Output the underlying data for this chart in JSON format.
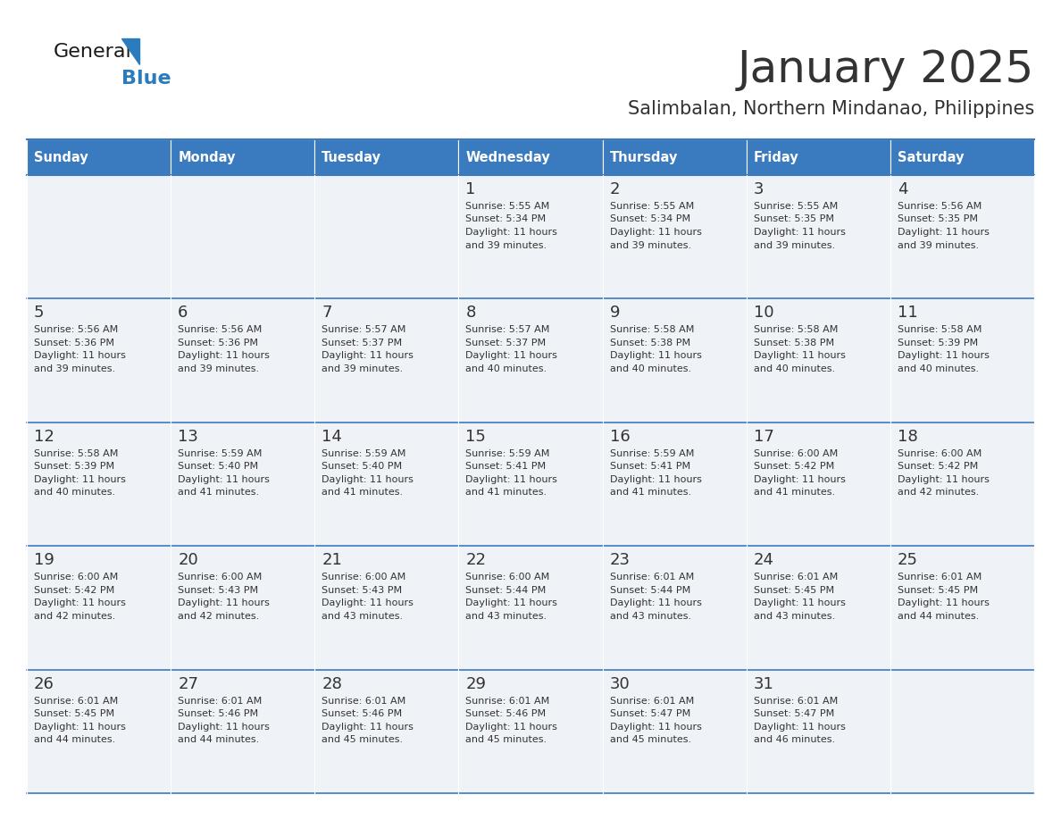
{
  "title": "January 2025",
  "subtitle": "Salimbalan, Northern Mindanao, Philippines",
  "header_bg": "#3a7abf",
  "header_text_color": "#ffffff",
  "cell_bg": "#eff3f7",
  "text_color": "#333333",
  "border_color": "#3a7abf",
  "days_of_week": [
    "Sunday",
    "Monday",
    "Tuesday",
    "Wednesday",
    "Thursday",
    "Friday",
    "Saturday"
  ],
  "weeks": [
    [
      {
        "day": "",
        "sunrise": "",
        "sunset": "",
        "daylight": ""
      },
      {
        "day": "",
        "sunrise": "",
        "sunset": "",
        "daylight": ""
      },
      {
        "day": "",
        "sunrise": "",
        "sunset": "",
        "daylight": ""
      },
      {
        "day": "1",
        "sunrise": "5:55 AM",
        "sunset": "5:34 PM",
        "daylight_h": "11 hours",
        "daylight_m": "and 39 minutes."
      },
      {
        "day": "2",
        "sunrise": "5:55 AM",
        "sunset": "5:34 PM",
        "daylight_h": "11 hours",
        "daylight_m": "and 39 minutes."
      },
      {
        "day": "3",
        "sunrise": "5:55 AM",
        "sunset": "5:35 PM",
        "daylight_h": "11 hours",
        "daylight_m": "and 39 minutes."
      },
      {
        "day": "4",
        "sunrise": "5:56 AM",
        "sunset": "5:35 PM",
        "daylight_h": "11 hours",
        "daylight_m": "and 39 minutes."
      }
    ],
    [
      {
        "day": "5",
        "sunrise": "5:56 AM",
        "sunset": "5:36 PM",
        "daylight_h": "11 hours",
        "daylight_m": "and 39 minutes."
      },
      {
        "day": "6",
        "sunrise": "5:56 AM",
        "sunset": "5:36 PM",
        "daylight_h": "11 hours",
        "daylight_m": "and 39 minutes."
      },
      {
        "day": "7",
        "sunrise": "5:57 AM",
        "sunset": "5:37 PM",
        "daylight_h": "11 hours",
        "daylight_m": "and 39 minutes."
      },
      {
        "day": "8",
        "sunrise": "5:57 AM",
        "sunset": "5:37 PM",
        "daylight_h": "11 hours",
        "daylight_m": "and 40 minutes."
      },
      {
        "day": "9",
        "sunrise": "5:58 AM",
        "sunset": "5:38 PM",
        "daylight_h": "11 hours",
        "daylight_m": "and 40 minutes."
      },
      {
        "day": "10",
        "sunrise": "5:58 AM",
        "sunset": "5:38 PM",
        "daylight_h": "11 hours",
        "daylight_m": "and 40 minutes."
      },
      {
        "day": "11",
        "sunrise": "5:58 AM",
        "sunset": "5:39 PM",
        "daylight_h": "11 hours",
        "daylight_m": "and 40 minutes."
      }
    ],
    [
      {
        "day": "12",
        "sunrise": "5:58 AM",
        "sunset": "5:39 PM",
        "daylight_h": "11 hours",
        "daylight_m": "and 40 minutes."
      },
      {
        "day": "13",
        "sunrise": "5:59 AM",
        "sunset": "5:40 PM",
        "daylight_h": "11 hours",
        "daylight_m": "and 41 minutes."
      },
      {
        "day": "14",
        "sunrise": "5:59 AM",
        "sunset": "5:40 PM",
        "daylight_h": "11 hours",
        "daylight_m": "and 41 minutes."
      },
      {
        "day": "15",
        "sunrise": "5:59 AM",
        "sunset": "5:41 PM",
        "daylight_h": "11 hours",
        "daylight_m": "and 41 minutes."
      },
      {
        "day": "16",
        "sunrise": "5:59 AM",
        "sunset": "5:41 PM",
        "daylight_h": "11 hours",
        "daylight_m": "and 41 minutes."
      },
      {
        "day": "17",
        "sunrise": "6:00 AM",
        "sunset": "5:42 PM",
        "daylight_h": "11 hours",
        "daylight_m": "and 41 minutes."
      },
      {
        "day": "18",
        "sunrise": "6:00 AM",
        "sunset": "5:42 PM",
        "daylight_h": "11 hours",
        "daylight_m": "and 42 minutes."
      }
    ],
    [
      {
        "day": "19",
        "sunrise": "6:00 AM",
        "sunset": "5:42 PM",
        "daylight_h": "11 hours",
        "daylight_m": "and 42 minutes."
      },
      {
        "day": "20",
        "sunrise": "6:00 AM",
        "sunset": "5:43 PM",
        "daylight_h": "11 hours",
        "daylight_m": "and 42 minutes."
      },
      {
        "day": "21",
        "sunrise": "6:00 AM",
        "sunset": "5:43 PM",
        "daylight_h": "11 hours",
        "daylight_m": "and 43 minutes."
      },
      {
        "day": "22",
        "sunrise": "6:00 AM",
        "sunset": "5:44 PM",
        "daylight_h": "11 hours",
        "daylight_m": "and 43 minutes."
      },
      {
        "day": "23",
        "sunrise": "6:01 AM",
        "sunset": "5:44 PM",
        "daylight_h": "11 hours",
        "daylight_m": "and 43 minutes."
      },
      {
        "day": "24",
        "sunrise": "6:01 AM",
        "sunset": "5:45 PM",
        "daylight_h": "11 hours",
        "daylight_m": "and 43 minutes."
      },
      {
        "day": "25",
        "sunrise": "6:01 AM",
        "sunset": "5:45 PM",
        "daylight_h": "11 hours",
        "daylight_m": "and 44 minutes."
      }
    ],
    [
      {
        "day": "26",
        "sunrise": "6:01 AM",
        "sunset": "5:45 PM",
        "daylight_h": "11 hours",
        "daylight_m": "and 44 minutes."
      },
      {
        "day": "27",
        "sunrise": "6:01 AM",
        "sunset": "5:46 PM",
        "daylight_h": "11 hours",
        "daylight_m": "and 44 minutes."
      },
      {
        "day": "28",
        "sunrise": "6:01 AM",
        "sunset": "5:46 PM",
        "daylight_h": "11 hours",
        "daylight_m": "and 45 minutes."
      },
      {
        "day": "29",
        "sunrise": "6:01 AM",
        "sunset": "5:46 PM",
        "daylight_h": "11 hours",
        "daylight_m": "and 45 minutes."
      },
      {
        "day": "30",
        "sunrise": "6:01 AM",
        "sunset": "5:47 PM",
        "daylight_h": "11 hours",
        "daylight_m": "and 45 minutes."
      },
      {
        "day": "31",
        "sunrise": "6:01 AM",
        "sunset": "5:47 PM",
        "daylight_h": "11 hours",
        "daylight_m": "and 46 minutes."
      },
      {
        "day": "",
        "sunrise": "",
        "sunset": "",
        "daylight_h": "",
        "daylight_m": ""
      }
    ]
  ],
  "logo_general_color": "#1a1a1a",
  "logo_blue_color": "#2b7bbf",
  "figsize": [
    11.88,
    9.18
  ],
  "dpi": 100
}
